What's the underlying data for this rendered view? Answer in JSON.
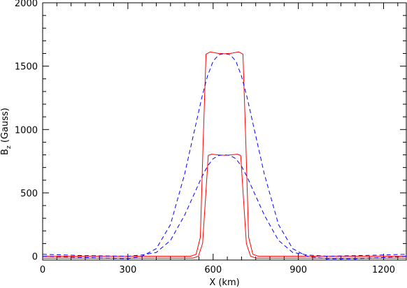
{
  "chart_data": {
    "type": "line",
    "title": "",
    "xlabel": "X (km)",
    "ylabel": {
      "main": "B",
      "subscript": "z",
      "rest": " (Gauss)"
    },
    "xlim": [
      0,
      1280
    ],
    "ylim": [
      -30,
      2000
    ],
    "grid": false,
    "x_ticks": [
      0,
      300,
      600,
      900,
      1200
    ],
    "x_tick_labels": [
      "0",
      "300",
      "600",
      "900",
      "1200"
    ],
    "y_ticks": [
      0,
      500,
      1000,
      1500,
      2000
    ],
    "y_tick_labels": [
      "0",
      "500",
      "1000",
      "1500",
      "2000"
    ],
    "colors": {
      "solid": "#ff0000",
      "dashed": "#0000ff",
      "axis": "#000000"
    },
    "series": [
      {
        "style": "solid",
        "color": "#ff0000",
        "x": [
          0,
          520,
          540,
          555,
          565,
          575,
          590,
          620,
          640,
          660,
          690,
          705,
          715,
          725,
          740,
          760,
          1280
        ],
        "y": [
          0,
          0,
          15,
          150,
          900,
          1595,
          1612,
          1600,
          1598,
          1600,
          1612,
          1595,
          900,
          150,
          15,
          0,
          0
        ]
      },
      {
        "style": "solid",
        "color": "#ff0000",
        "x": [
          0,
          528,
          548,
          563,
          573,
          583,
          595,
          625,
          640,
          655,
          685,
          697,
          707,
          717,
          732,
          752,
          1280
        ],
        "y": [
          -15,
          -15,
          0,
          100,
          450,
          795,
          805,
          798,
          797,
          798,
          805,
          795,
          450,
          100,
          0,
          -15,
          -15
        ]
      },
      {
        "style": "dashed",
        "color": "#0000ff",
        "x": [
          0,
          150,
          300,
          350,
          400,
          450,
          500,
          540,
          560,
          580,
          600,
          620,
          640,
          660,
          680,
          700,
          720,
          740,
          780,
          830,
          880,
          930,
          1000,
          1100,
          1200,
          1280
        ],
        "y": [
          0,
          -10,
          -20,
          0,
          60,
          250,
          650,
          1050,
          1250,
          1420,
          1540,
          1590,
          1600,
          1590,
          1540,
          1420,
          1250,
          1050,
          650,
          250,
          60,
          0,
          -20,
          -20,
          -10,
          0
        ]
      },
      {
        "style": "dashed",
        "color": "#0000ff",
        "x": [
          0,
          150,
          300,
          350,
          400,
          450,
          500,
          540,
          560,
          580,
          600,
          620,
          640,
          660,
          680,
          700,
          720,
          740,
          780,
          830,
          880,
          930,
          1000,
          1100,
          1200,
          1280
        ],
        "y": [
          15,
          5,
          0,
          10,
          30,
          125,
          325,
          525,
          625,
          710,
          770,
          795,
          800,
          795,
          770,
          710,
          625,
          525,
          325,
          125,
          30,
          10,
          0,
          5,
          10,
          15
        ]
      }
    ]
  }
}
